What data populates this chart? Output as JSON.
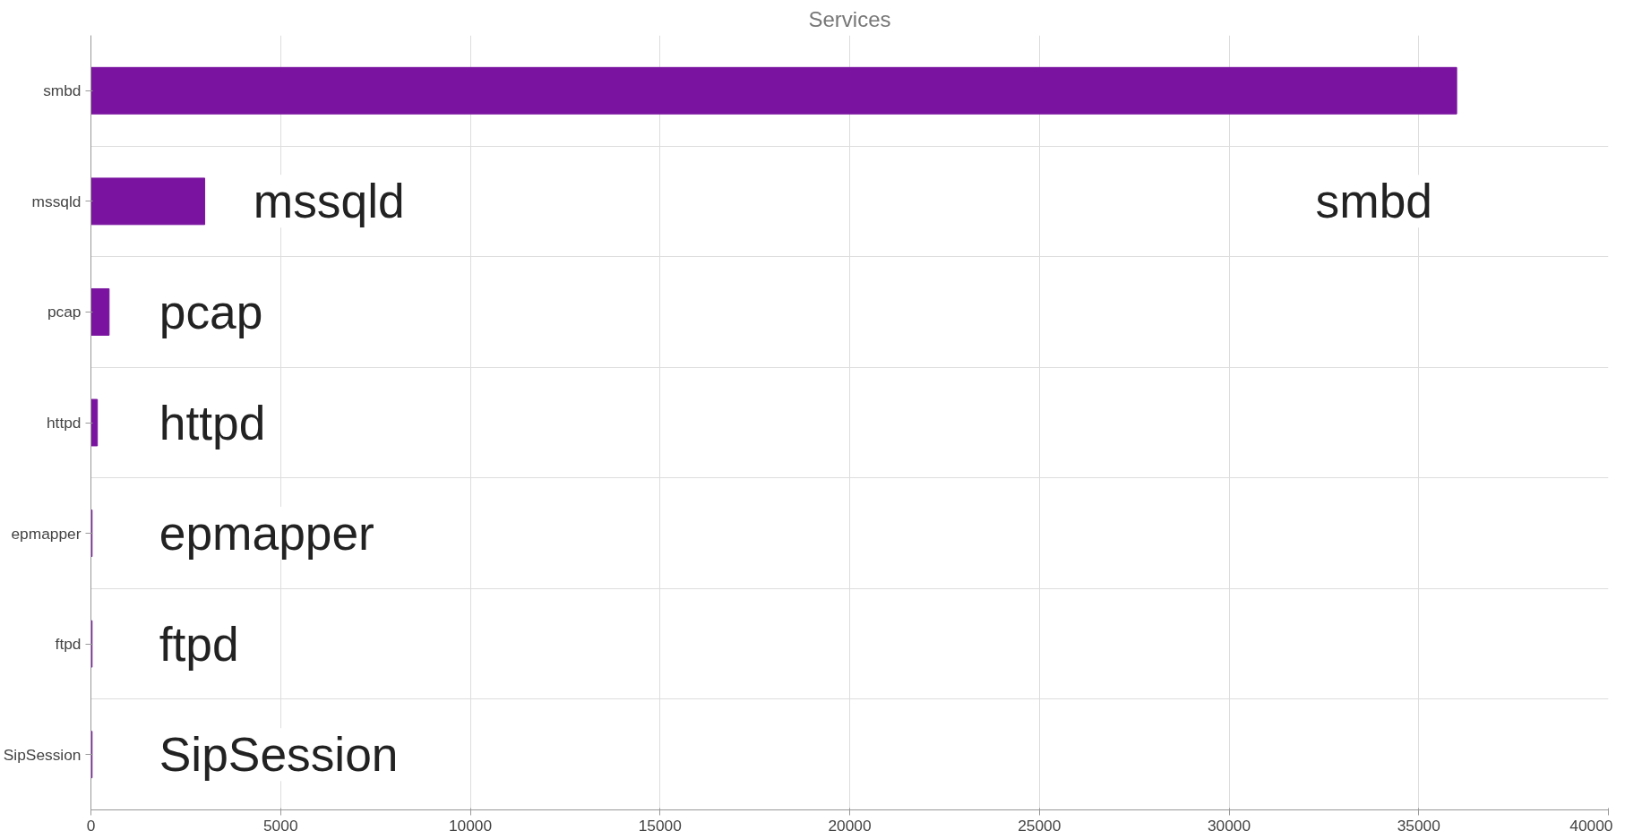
{
  "chart_data": {
    "type": "bar",
    "orientation": "horizontal",
    "title": "Services",
    "categories": [
      "smbd",
      "mssqld",
      "pcap",
      "httpd",
      "epmapper",
      "ftpd",
      "SipSession"
    ],
    "values": [
      36000,
      3000,
      480,
      170,
      30,
      30,
      30
    ],
    "color": "#7a14a0",
    "xlim": [
      0,
      40000
    ],
    "xticks": [
      0,
      5000,
      10000,
      15000,
      20000,
      25000,
      30000,
      35000,
      40000
    ],
    "grid": true,
    "annotations": [
      "smbd",
      "mssqld",
      "pcap",
      "httpd",
      "epmapper",
      "ftpd",
      "SipSession"
    ]
  }
}
